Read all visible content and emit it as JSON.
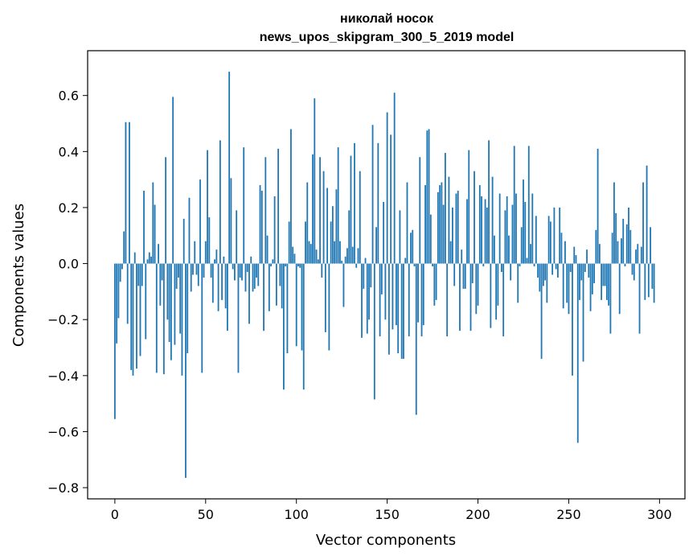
{
  "chart_data": {
    "type": "bar",
    "title_line1": "николай носок",
    "title_line2": "news_upos_skipgram_300_5_2019 model",
    "xlabel": "Vector components",
    "ylabel": "Components values",
    "xlim": [
      -15,
      314
    ],
    "ylim": [
      -0.84,
      0.76
    ],
    "xticks": [
      0,
      50,
      100,
      150,
      200,
      250,
      300
    ],
    "xtick_labels": [
      "0",
      "50",
      "100",
      "150",
      "200",
      "250",
      "300"
    ],
    "yticks": [
      -0.8,
      -0.6,
      -0.4,
      -0.2,
      0.0,
      0.2,
      0.4,
      0.6
    ],
    "ytick_labels": [
      "−0.8",
      "−0.6",
      "−0.4",
      "−0.2",
      "0.0",
      "0.2",
      "0.4",
      "0.6"
    ],
    "bar_color": "#1f77b4",
    "values": [
      -0.555,
      -0.285,
      -0.195,
      -0.065,
      -0.02,
      0.115,
      0.505,
      -0.215,
      0.505,
      -0.38,
      -0.4,
      0.04,
      -0.375,
      -0.08,
      -0.33,
      -0.08,
      0.26,
      -0.27,
      0.015,
      0.04,
      0.025,
      0.29,
      0.21,
      -0.39,
      0.07,
      -0.15,
      -0.06,
      -0.395,
      0.38,
      -0.2,
      -0.28,
      -0.345,
      0.595,
      -0.29,
      -0.09,
      -0.05,
      -0.25,
      -0.4,
      0.16,
      -0.765,
      -0.32,
      0.235,
      -0.1,
      -0.04,
      0.08,
      -0.04,
      -0.08,
      0.3,
      -0.39,
      -0.05,
      0.08,
      0.405,
      0.165,
      -0.05,
      -0.14,
      0.015,
      0.05,
      -0.17,
      0.44,
      -0.13,
      0.025,
      -0.16,
      -0.24,
      0.685,
      0.305,
      -0.02,
      -0.06,
      0.19,
      -0.39,
      -0.05,
      -0.06,
      0.415,
      -0.1,
      -0.03,
      -0.215,
      0.025,
      -0.1,
      -0.09,
      -0.05,
      -0.08,
      0.28,
      0.26,
      -0.24,
      0.38,
      0.1,
      -0.17,
      -0.01,
      0.015,
      0.24,
      -0.15,
      0.41,
      -0.08,
      -0.16,
      -0.45,
      -0.01,
      -0.32,
      0.15,
      0.48,
      0.06,
      0.035,
      -0.295,
      -0.01,
      -0.015,
      -0.31,
      -0.45,
      0.15,
      0.29,
      0.08,
      0.07,
      0.39,
      0.59,
      0.05,
      0.015,
      0.38,
      -0.05,
      0.33,
      -0.245,
      0.27,
      -0.31,
      0.15,
      0.205,
      0.08,
      0.265,
      0.415,
      0.08,
      0.01,
      -0.155,
      0.025,
      0.055,
      0.19,
      0.385,
      0.06,
      0.43,
      -0.015,
      0.055,
      0.33,
      -0.265,
      -0.09,
      0.02,
      -0.25,
      -0.2,
      -0.085,
      0.495,
      -0.485,
      0.13,
      0.43,
      -0.26,
      -0.11,
      0.22,
      -0.2,
      0.54,
      -0.325,
      0.46,
      -0.235,
      0.61,
      -0.22,
      -0.32,
      0.19,
      -0.34,
      -0.34,
      0.02,
      0.29,
      -0.26,
      0.11,
      0.12,
      -0.01,
      -0.54,
      -0.21,
      0.38,
      -0.26,
      -0.22,
      0.28,
      0.475,
      0.48,
      0.175,
      -0.01,
      -0.15,
      -0.13,
      0.255,
      0.28,
      0.29,
      0.21,
      0.395,
      -0.26,
      0.31,
      0.08,
      0.2,
      -0.08,
      0.25,
      0.26,
      -0.24,
      0.05,
      -0.09,
      -0.09,
      0.23,
      0.405,
      -0.24,
      -0.07,
      0.33,
      -0.18,
      -0.15,
      0.28,
      0.24,
      -0.01,
      0.23,
      0.2,
      0.44,
      -0.23,
      0.31,
      0.1,
      -0.2,
      -0.15,
      0.25,
      -0.03,
      -0.26,
      0.19,
      0.24,
      0.1,
      -0.06,
      0.21,
      0.42,
      0.25,
      -0.14,
      -0.01,
      0.13,
      0.3,
      0.22,
      0.02,
      0.42,
      0.07,
      0.25,
      -0.01,
      0.17,
      -0.05,
      -0.1,
      -0.34,
      -0.08,
      -0.06,
      -0.14,
      0.17,
      0.15,
      -0.04,
      0.2,
      -0.02,
      -0.05,
      0.2,
      0.11,
      -0.16,
      0.08,
      -0.14,
      -0.18,
      -0.03,
      -0.4,
      0.06,
      0.03,
      -0.64,
      -0.13,
      -0.06,
      -0.35,
      -0.03,
      0.05,
      -0.05,
      -0.17,
      -0.11,
      -0.07,
      0.12,
      0.41,
      0.07,
      -0.13,
      -0.08,
      -0.08,
      -0.13,
      -0.15,
      -0.25,
      0.11,
      0.29,
      0.18,
      0.08,
      -0.18,
      0.09,
      0.16,
      -0.01,
      0.14,
      0.2,
      0.12,
      -0.04,
      -0.06,
      0.05,
      0.07,
      -0.25,
      0.06,
      0.29,
      -0.13,
      0.35,
      -0.12,
      0.13,
      -0.09,
      -0.14
    ]
  }
}
